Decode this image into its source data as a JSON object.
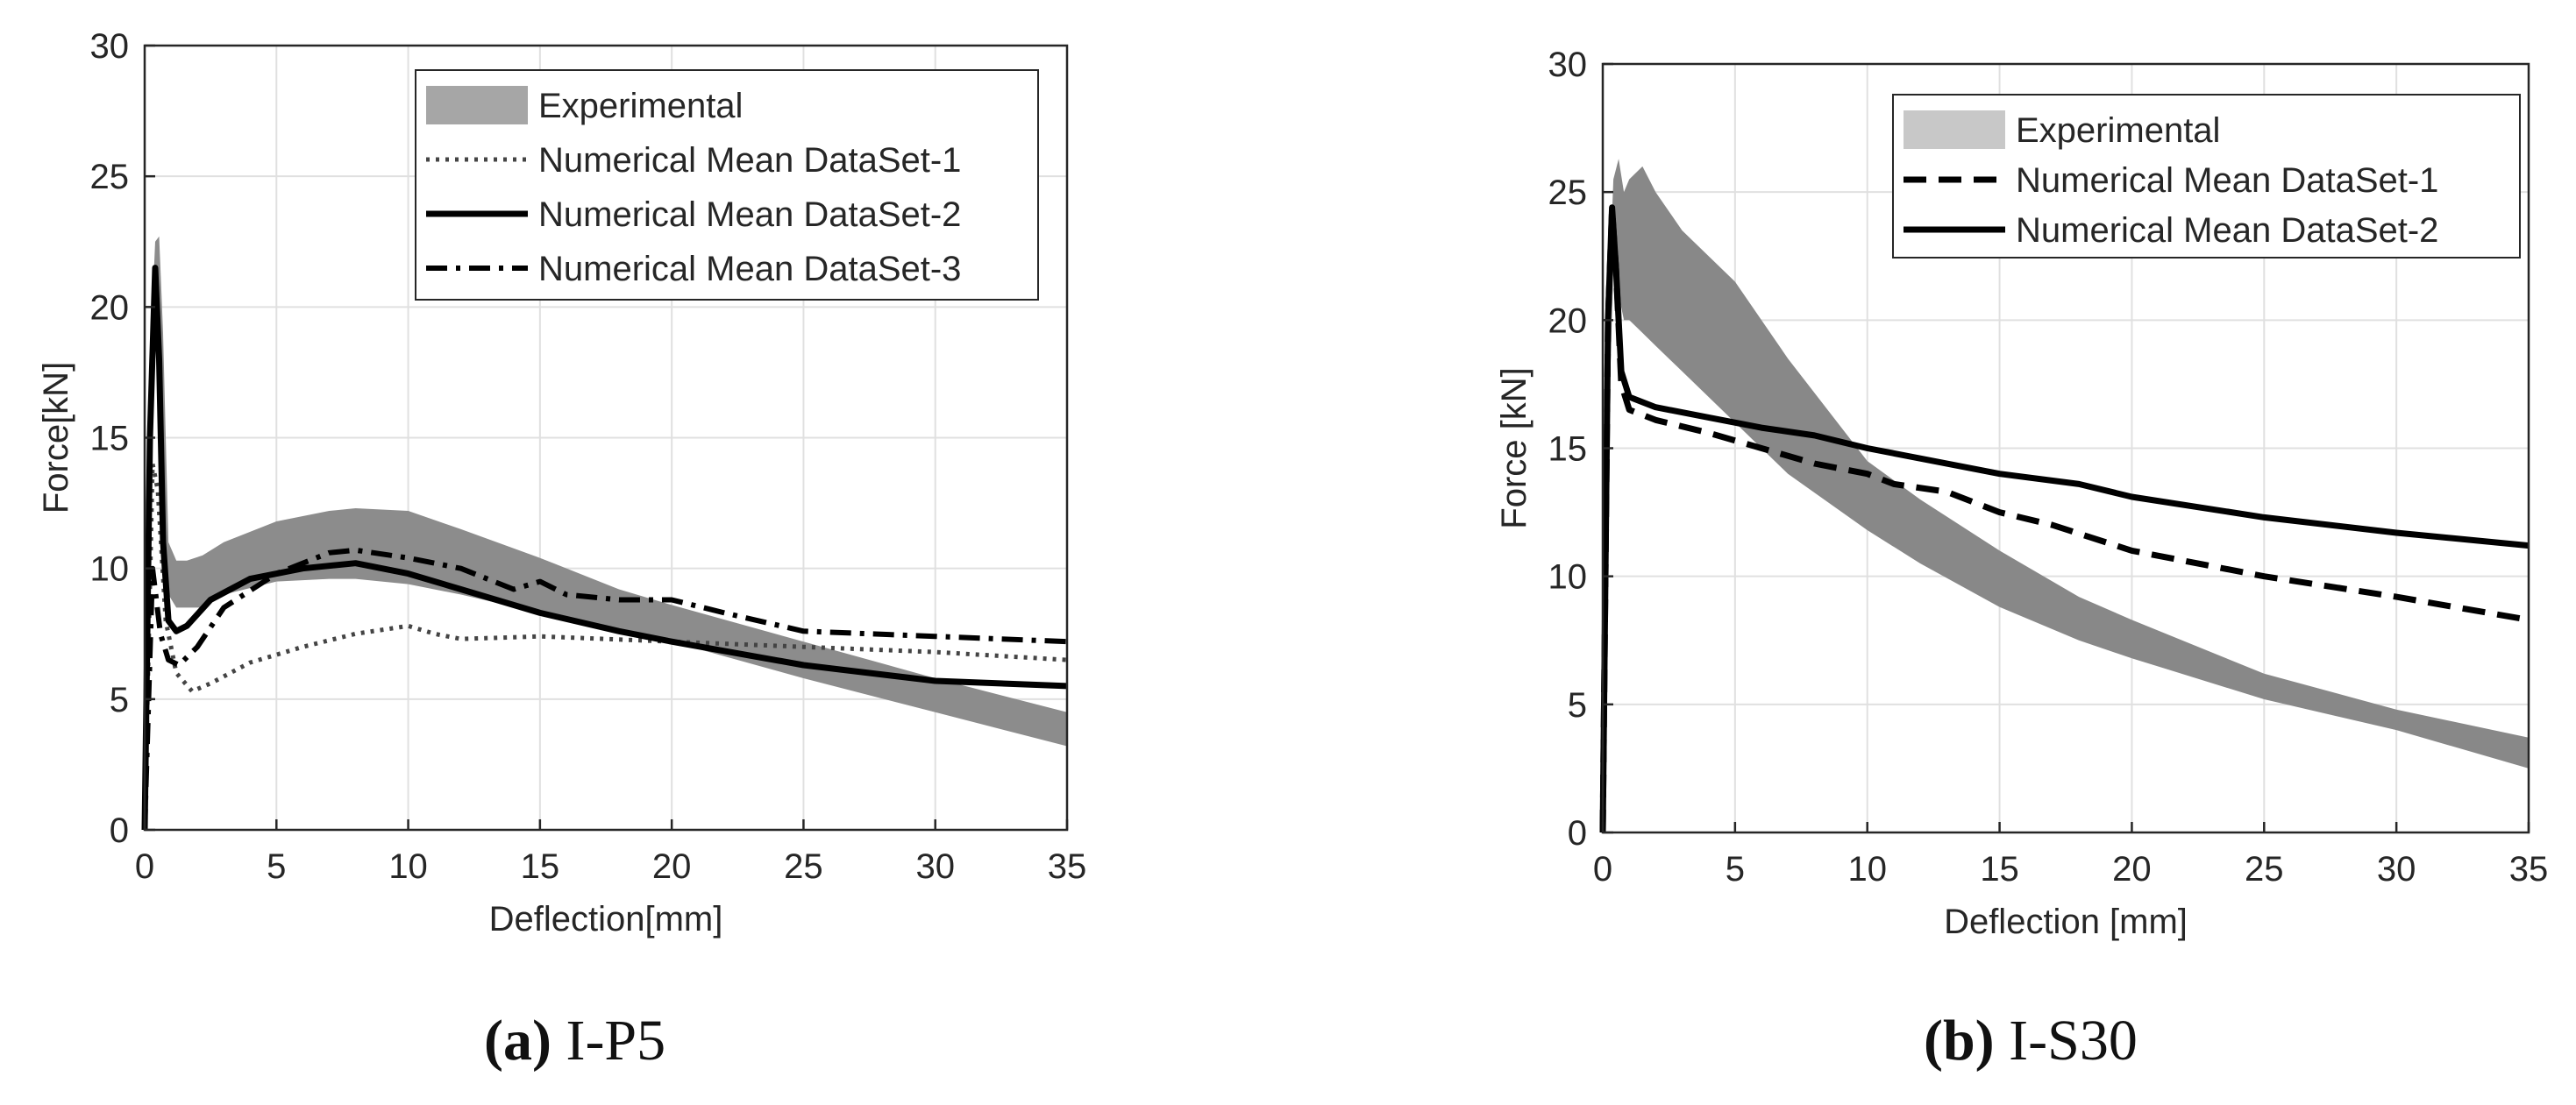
{
  "colors": {
    "band_a": "#8c8c8c",
    "band_b": "#888888",
    "legend_patch_a": "#a6a6a6",
    "legend_patch_b": "#c8c8c8",
    "grid": "#e0e0e0",
    "line": "#000000",
    "line_dotted": "#444444"
  },
  "chart_data": [
    {
      "type": "line",
      "id": "a",
      "caption": {
        "letter": "(a)",
        "text": "I-P5"
      },
      "xlabel": "Deflection[mm]",
      "ylabel": "Force[kN]",
      "xlim": [
        0,
        35
      ],
      "ylim": [
        0,
        30
      ],
      "xticks": [
        0,
        5,
        10,
        15,
        20,
        25,
        30,
        35
      ],
      "yticks": [
        0,
        5,
        10,
        15,
        20,
        25,
        30
      ],
      "grid": true,
      "legend_position": "top-right",
      "experimental_band": {
        "name": "Experimental",
        "x": [
          0,
          0.2,
          0.4,
          0.55,
          0.7,
          0.9,
          1.2,
          1.6,
          2.2,
          3,
          5,
          7,
          8,
          10,
          12,
          15,
          18,
          20,
          25,
          30,
          35
        ],
        "lower": [
          0,
          14,
          20,
          18,
          12,
          9,
          8.5,
          8.5,
          8.5,
          9,
          9.5,
          9.6,
          9.6,
          9.4,
          9,
          8.3,
          7.6,
          7.2,
          5.8,
          4.5,
          3.2
        ],
        "upper": [
          0,
          18,
          22.5,
          22.7,
          19,
          11,
          10.3,
          10.3,
          10.5,
          11,
          11.8,
          12.2,
          12.3,
          12.2,
          11.5,
          10.4,
          9.2,
          8.6,
          7.2,
          5.8,
          4.5
        ]
      },
      "series": [
        {
          "name": "Numerical Mean DataSet-1",
          "dash": "dotted",
          "x": [
            0,
            0.3,
            0.5,
            0.8,
            1.2,
            1.8,
            2.5,
            4,
            6,
            8,
            10,
            11,
            12,
            15,
            20,
            25,
            30,
            35
          ],
          "y": [
            0,
            14,
            13,
            8,
            6,
            5.3,
            5.6,
            6.4,
            7,
            7.5,
            7.8,
            7.5,
            7.3,
            7.4,
            7.2,
            7.0,
            6.8,
            6.5
          ]
        },
        {
          "name": "Numerical Mean DataSet-2",
          "dash": "solid",
          "x": [
            0,
            0.2,
            0.4,
            0.55,
            0.7,
            0.9,
            1.2,
            1.6,
            2.5,
            4,
            6,
            8,
            10,
            12,
            15,
            18,
            20,
            25,
            30,
            35
          ],
          "y": [
            0,
            15,
            21.5,
            18,
            11,
            8,
            7.6,
            7.8,
            8.8,
            9.6,
            10,
            10.2,
            9.8,
            9.2,
            8.3,
            7.6,
            7.2,
            6.3,
            5.7,
            5.5
          ]
        },
        {
          "name": "Numerical Mean DataSet-3",
          "dash": "dashdot",
          "x": [
            0,
            0.3,
            0.6,
            0.9,
            1.3,
            2,
            3,
            5,
            7,
            8,
            10,
            12,
            14,
            15,
            16,
            18,
            20,
            22,
            25,
            30,
            35
          ],
          "y": [
            0,
            10,
            7.5,
            6.5,
            6.3,
            7,
            8.5,
            9.8,
            10.6,
            10.7,
            10.4,
            10,
            9.2,
            9.5,
            9.0,
            8.8,
            8.8,
            8.3,
            7.6,
            7.4,
            7.2
          ]
        }
      ]
    },
    {
      "type": "line",
      "id": "b",
      "caption": {
        "letter": "(b)",
        "text": "I-S30"
      },
      "xlabel": "Deflection [mm]",
      "ylabel": "Force [kN]",
      "xlim": [
        0,
        35
      ],
      "ylim": [
        0,
        30
      ],
      "xticks": [
        0,
        5,
        10,
        15,
        20,
        25,
        30,
        35
      ],
      "yticks": [
        0,
        5,
        10,
        15,
        20,
        25,
        30
      ],
      "grid": true,
      "legend_position": "top-right",
      "experimental_band": {
        "name": "Experimental",
        "x": [
          0,
          0.2,
          0.4,
          0.6,
          0.8,
          1,
          1.5,
          2,
          3,
          5,
          7,
          10,
          12,
          15,
          18,
          20,
          25,
          30,
          35
        ],
        "lower": [
          0,
          15,
          22,
          21,
          20,
          20,
          19.5,
          19,
          18,
          16,
          14,
          11.8,
          10.5,
          8.8,
          7.5,
          6.8,
          5.2,
          4.0,
          2.5
        ],
        "upper": [
          0,
          20,
          25.5,
          26.3,
          25,
          25.5,
          26,
          25,
          23.5,
          21.5,
          18.5,
          14.5,
          13,
          11,
          9.2,
          8.3,
          6.2,
          4.8,
          3.7
        ]
      },
      "series": [
        {
          "name": "Numerical Mean DataSet-1",
          "dash": "dashed",
          "x": [
            0,
            0.2,
            0.35,
            0.5,
            0.7,
            1,
            2,
            4,
            6,
            8,
            10,
            11,
            13,
            15,
            17,
            20,
            25,
            30,
            35
          ],
          "y": [
            0,
            20,
            24.3,
            22,
            17.5,
            16.5,
            16.1,
            15.6,
            15.0,
            14.4,
            14.0,
            13.6,
            13.3,
            12.5,
            12.0,
            11.0,
            10.0,
            9.2,
            8.3
          ]
        },
        {
          "name": "Numerical Mean DataSet-2",
          "dash": "solid",
          "x": [
            0,
            0.2,
            0.35,
            0.5,
            0.7,
            1,
            2,
            4,
            6,
            8,
            10,
            12,
            15,
            18,
            20,
            25,
            30,
            35
          ],
          "y": [
            0,
            20,
            24.4,
            22,
            18,
            17,
            16.6,
            16.2,
            15.8,
            15.5,
            15.0,
            14.6,
            14.0,
            13.6,
            13.1,
            12.3,
            11.7,
            11.2
          ]
        }
      ]
    }
  ]
}
